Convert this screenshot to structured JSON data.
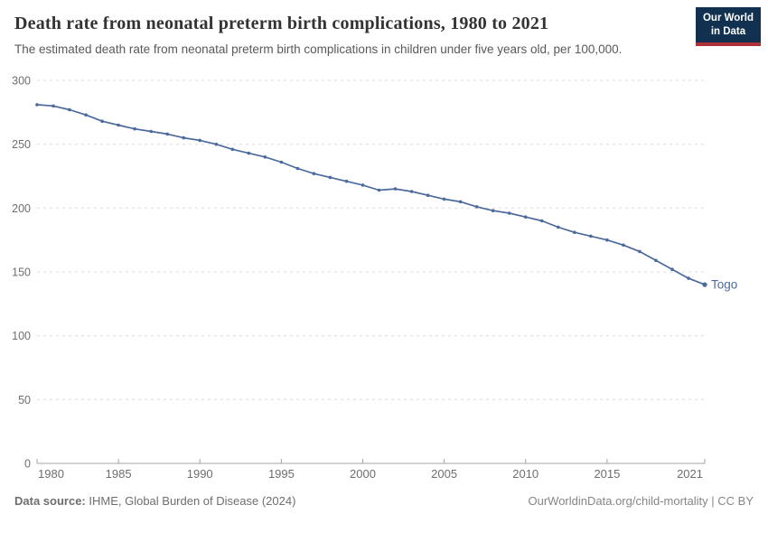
{
  "header": {
    "title": "Death rate from neonatal preterm birth complications, 1980 to 2021",
    "subtitle": "The estimated death rate from neonatal preterm birth complications in children under five years old, per 100,000.",
    "logo_line1": "Our World",
    "logo_line2": "in Data"
  },
  "chart_data": {
    "type": "line",
    "title": "Death rate from neonatal preterm birth complications, 1980 to 2021",
    "subtitle": "The estimated death rate from neonatal preterm birth complications in children under five years old, per 100,000.",
    "xlabel": "",
    "ylabel": "",
    "xlim": [
      1980,
      2021
    ],
    "ylim": [
      0,
      300
    ],
    "xticks": [
      1980,
      1985,
      1990,
      1995,
      2000,
      2005,
      2010,
      2015,
      2021
    ],
    "yticks": [
      0,
      50,
      100,
      150,
      200,
      250,
      300
    ],
    "grid": "horizontal-dashed",
    "legend_position": "end-of-line-label",
    "x": [
      1980,
      1981,
      1982,
      1983,
      1984,
      1985,
      1986,
      1987,
      1988,
      1989,
      1990,
      1991,
      1992,
      1993,
      1994,
      1995,
      1996,
      1997,
      1998,
      1999,
      2000,
      2001,
      2002,
      2003,
      2004,
      2005,
      2006,
      2007,
      2008,
      2009,
      2010,
      2011,
      2012,
      2013,
      2014,
      2015,
      2016,
      2017,
      2018,
      2019,
      2020,
      2021
    ],
    "series": [
      {
        "name": "Togo",
        "color": "#4C6A9C",
        "values": [
          281,
          280,
          277,
          273,
          268,
          265,
          262,
          260,
          258,
          255,
          253,
          250,
          246,
          243,
          240,
          236,
          231,
          227,
          224,
          221,
          218,
          214,
          215,
          213,
          210,
          207,
          205,
          201,
          198,
          196,
          193,
          190,
          185,
          181,
          178,
          175,
          171,
          166,
          159,
          152,
          145,
          140
        ]
      }
    ]
  },
  "footer": {
    "source_label": "Data source:",
    "source_text": " IHME, Global Burden of Disease (2024)",
    "credit": "OurWorldinData.org/child-mortality | CC BY"
  },
  "colors": {
    "line": "#4C6A9C",
    "logo_bg": "#12304F",
    "logo_stripe": "#AE3139",
    "gridline": "#dcdcdc",
    "axis": "#a5a5a5",
    "tick_text": "#6e6e6e"
  }
}
